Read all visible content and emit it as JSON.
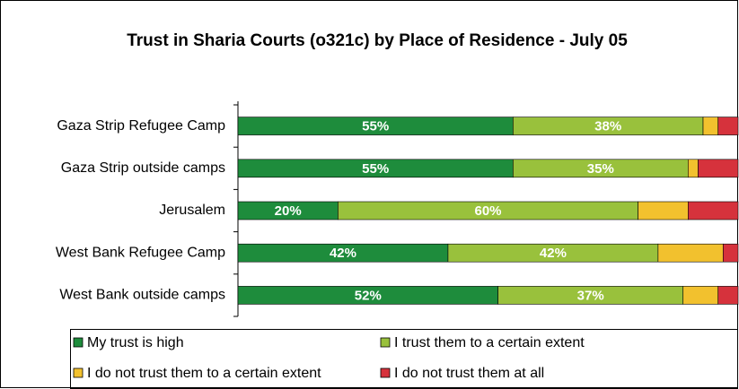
{
  "chart_data": {
    "type": "stacked_bar_horizontal",
    "title": "Trust in Sharia Courts (o321c) by Place of Residence - July 05",
    "categories": [
      "Gaza Strip Refugee Camp",
      "Gaza Strip outside camps",
      "Jerusalem",
      "West Bank Refugee Camp",
      "West Bank outside camps"
    ],
    "xlim": [
      0,
      100
    ],
    "series": [
      {
        "name": "My trust is high",
        "color": "#1e8c3c",
        "values": [
          55,
          55,
          20,
          42,
          52
        ],
        "value_labels": [
          "55%",
          "55%",
          "20%",
          "42%",
          "52%"
        ]
      },
      {
        "name": "I trust them to a certain extent",
        "color": "#99c13c",
        "values": [
          38,
          35,
          60,
          42,
          37
        ],
        "value_labels": [
          "38%",
          "35%",
          "60%",
          "42%",
          "37%"
        ]
      },
      {
        "name": "I do not trust them to a certain extent",
        "color": "#f2c12e",
        "values": [
          3,
          2,
          10,
          13,
          7
        ]
      },
      {
        "name": "I do not trust them at all",
        "color": "#d6323c",
        "values": [
          4,
          8,
          10,
          3,
          4
        ]
      }
    ],
    "legend": "bottom"
  }
}
